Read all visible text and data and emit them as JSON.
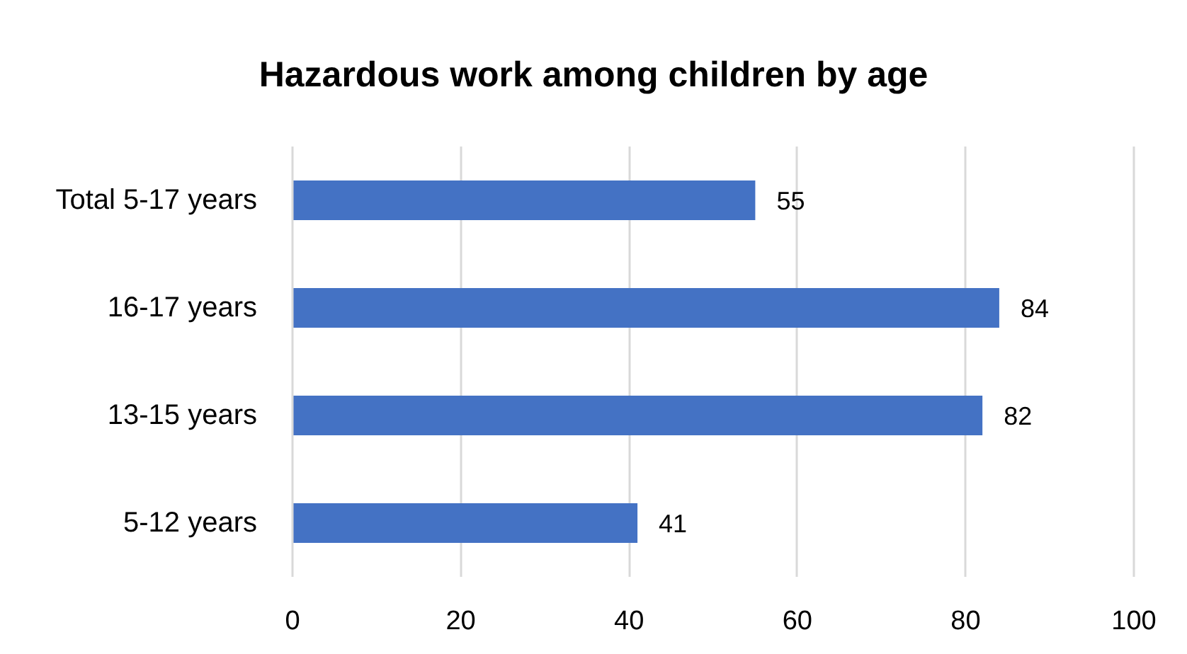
{
  "chart_data": {
    "type": "bar",
    "orientation": "horizontal",
    "title": "Hazardous work among children by age",
    "categories": [
      "Total 5-17 years",
      "16-17 years",
      "13-15 years",
      "5-12 years"
    ],
    "values": [
      55,
      84,
      82,
      41
    ],
    "color": "#4472c4",
    "xlim": [
      0,
      100
    ],
    "xticks": [
      0,
      20,
      40,
      60,
      80,
      100
    ],
    "grid": "x",
    "data_labels": true
  }
}
